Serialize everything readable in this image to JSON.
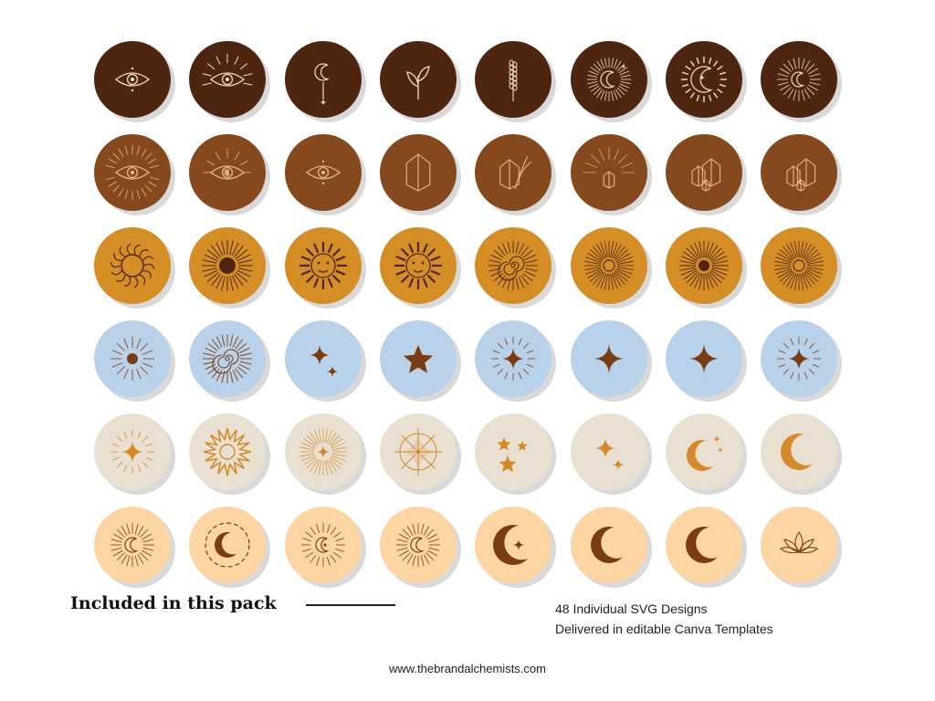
{
  "grid": {
    "rows": [
      {
        "color": "#4e2511",
        "line": "#f1dfc3",
        "icons": [
          "eye-icon",
          "all-seeing-eye-icon",
          "hanging-moon-icon",
          "leaf-sprig-icon",
          "lavender-icon",
          "sun-moon-icon",
          "crescent-sun-icon",
          "moon-rays-icon"
        ]
      },
      {
        "color": "#86481d",
        "line": "#e4b98c",
        "icons": [
          "radiant-eye-icon",
          "moon-eye-icon",
          "eye-icon",
          "crystal-icon",
          "crystal-lavender-icon",
          "radiant-crystal-icon",
          "crystal-cluster-icon",
          "crystal-cluster-icon"
        ]
      },
      {
        "color": "#d58d26",
        "line": "#4e2511",
        "icons": [
          "flame-sun-icon",
          "dark-sun-icon",
          "sun-face-icon",
          "sun-face-icon",
          "spiral-sun-icon",
          "rays-sun-icon",
          "dark-sun-rays-icon",
          "rays-sun-icon"
        ]
      },
      {
        "color": "#b9d2ea",
        "line": "#7a3c12",
        "icons": [
          "dot-sun-icon",
          "spiral-sun-icon",
          "two-sparkles-icon",
          "star-icon",
          "sparkle-rays-icon",
          "sparkle-icon",
          "sparkle-icon",
          "sparkle-rays-icon"
        ]
      },
      {
        "color": "#e9e0d2",
        "line": "#d48a2a",
        "icons": [
          "sparkle-rays-icon",
          "spiky-sun-icon",
          "starburst-icon",
          "compass-icon",
          "three-stars-icon",
          "two-sparkles-icon",
          "moon-stars-icon",
          "crescent-moon-icon"
        ]
      },
      {
        "color": "#fcd5a3",
        "line": "#7a3c12",
        "icons": [
          "moon-rays-icon",
          "moon-ring-icon",
          "moon-star-rays-icon",
          "moon-rays-icon",
          "moon-star-icon",
          "crescent-moon-icon",
          "crescent-moon-icon",
          "lotus-icon"
        ]
      }
    ]
  },
  "footer": {
    "heading": "Included in this pack",
    "features": [
      "48 Individual SVG Designs",
      "Delivered in editable Canva Templates"
    ],
    "website": "www.thebrandalchemists.com"
  }
}
